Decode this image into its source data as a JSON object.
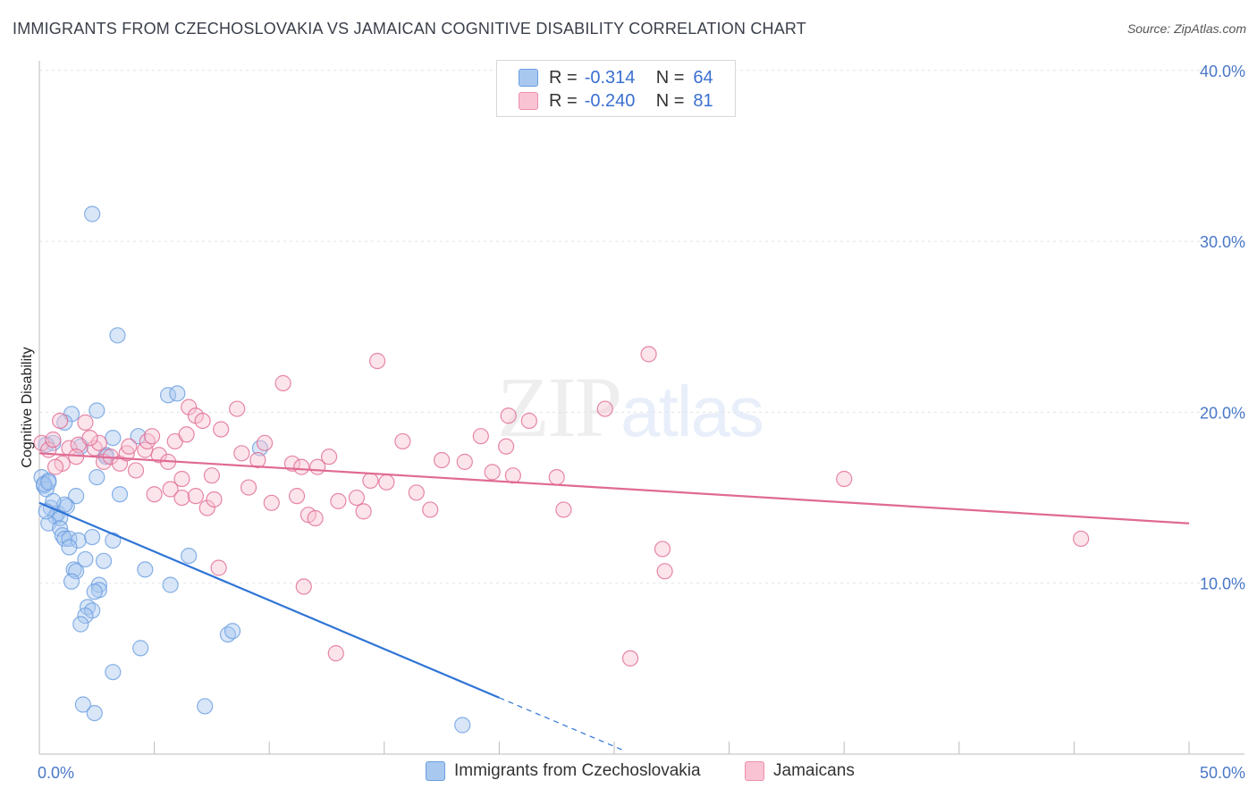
{
  "title": "IMMIGRANTS FROM CZECHOSLOVAKIA VS JAMAICAN COGNITIVE DISABILITY CORRELATION CHART",
  "source": "Source: ZipAtlas.com",
  "watermark": {
    "zip": "ZIP",
    "atlas": "atlas"
  },
  "stats_legend": [
    {
      "r_label": "R =",
      "r_value": "-0.314",
      "n_label": "N =",
      "n_value": "64",
      "color": "#a9c8f0",
      "border": "#6a9ee0"
    },
    {
      "r_label": "R =",
      "r_value": "-0.240",
      "n_label": "N =",
      "n_value": "81",
      "color": "#f9c3d3",
      "border": "#ec8fab"
    }
  ],
  "bottom_legend": [
    {
      "label": "Immigrants from Czechoslovakia",
      "color": "#a9c8f0",
      "border": "#6a9ee0"
    },
    {
      "label": "Jamaicans",
      "color": "#f9c3d3",
      "border": "#ec8fab"
    }
  ],
  "chart_data": {
    "type": "scatter",
    "title": "IMMIGRANTS FROM CZECHOSLOVAKIA VS JAMAICAN COGNITIVE DISABILITY CORRELATION CHART",
    "xlabel": "",
    "ylabel": "Cognitive Disability",
    "xlim": [
      0,
      50
    ],
    "ylim": [
      0,
      40
    ],
    "x_tick_labels": [
      "0.0%",
      "50.0%"
    ],
    "y_ticks": [
      10,
      20,
      30,
      40
    ],
    "y_tick_labels": [
      "10.0%",
      "20.0%",
      "30.0%",
      "40.0%"
    ],
    "grid": true,
    "series": [
      {
        "name": "Immigrants from Czechoslovakia",
        "color": "#6a9ee0",
        "fill": "#a9c8f0",
        "r": -0.314,
        "n": 64,
        "trend": {
          "x0": 0,
          "y0": 14.7,
          "x1": 20,
          "y1": 3.3,
          "dash_to_x": 25.5
        },
        "points": [
          [
            2.3,
            31.6
          ],
          [
            3.4,
            24.5
          ],
          [
            5.6,
            21.0
          ],
          [
            6.0,
            21.1
          ],
          [
            2.5,
            20.1
          ],
          [
            1.4,
            19.9
          ],
          [
            1.1,
            19.4
          ],
          [
            0.6,
            18.2
          ],
          [
            0.3,
            18.1
          ],
          [
            3.2,
            18.5
          ],
          [
            4.3,
            18.6
          ],
          [
            9.6,
            17.9
          ],
          [
            1.8,
            18.0
          ],
          [
            2.9,
            17.5
          ],
          [
            0.1,
            16.2
          ],
          [
            0.4,
            16.0
          ],
          [
            0.2,
            15.7
          ],
          [
            0.3,
            15.5
          ],
          [
            1.6,
            15.1
          ],
          [
            3.5,
            15.2
          ],
          [
            2.5,
            16.2
          ],
          [
            0.5,
            14.4
          ],
          [
            0.8,
            14.1
          ],
          [
            1.2,
            14.5
          ],
          [
            1.1,
            14.6
          ],
          [
            0.7,
            13.9
          ],
          [
            0.9,
            13.8
          ],
          [
            0.4,
            13.5
          ],
          [
            0.9,
            13.2
          ],
          [
            1.0,
            12.8
          ],
          [
            1.1,
            12.6
          ],
          [
            1.3,
            12.6
          ],
          [
            1.7,
            12.5
          ],
          [
            2.3,
            12.7
          ],
          [
            3.2,
            12.5
          ],
          [
            1.3,
            12.1
          ],
          [
            2.0,
            11.4
          ],
          [
            2.8,
            11.3
          ],
          [
            6.5,
            11.6
          ],
          [
            1.5,
            10.8
          ],
          [
            1.6,
            10.7
          ],
          [
            4.6,
            10.8
          ],
          [
            1.4,
            10.1
          ],
          [
            5.7,
            9.9
          ],
          [
            2.6,
            9.9
          ],
          [
            2.6,
            9.6
          ],
          [
            2.4,
            9.5
          ],
          [
            2.1,
            8.6
          ],
          [
            2.3,
            8.4
          ],
          [
            2.0,
            8.1
          ],
          [
            1.8,
            7.6
          ],
          [
            8.2,
            7.0
          ],
          [
            8.4,
            7.2
          ],
          [
            4.4,
            6.2
          ],
          [
            3.2,
            4.8
          ],
          [
            1.9,
            2.9
          ],
          [
            2.4,
            2.4
          ],
          [
            7.2,
            2.8
          ],
          [
            18.4,
            1.7
          ],
          [
            0.2,
            15.8
          ],
          [
            0.6,
            14.8
          ],
          [
            0.3,
            14.2
          ],
          [
            2.9,
            17.4
          ],
          [
            0.4,
            15.9
          ]
        ]
      },
      {
        "name": "Jamaicans",
        "color": "#e06a92",
        "fill": "#f9c3d3",
        "r": -0.24,
        "n": 81,
        "trend": {
          "x0": 0,
          "y0": 17.6,
          "x1": 50,
          "y1": 13.5
        },
        "points": [
          [
            0.1,
            18.2
          ],
          [
            0.4,
            17.8
          ],
          [
            0.6,
            18.4
          ],
          [
            0.9,
            19.5
          ],
          [
            1.3,
            17.9
          ],
          [
            1.7,
            18.1
          ],
          [
            1.6,
            17.4
          ],
          [
            2.0,
            19.4
          ],
          [
            2.4,
            17.9
          ],
          [
            2.6,
            18.2
          ],
          [
            2.8,
            17.1
          ],
          [
            3.1,
            17.4
          ],
          [
            3.5,
            17.0
          ],
          [
            3.8,
            17.6
          ],
          [
            4.2,
            16.6
          ],
          [
            4.6,
            17.8
          ],
          [
            4.7,
            18.3
          ],
          [
            4.9,
            18.6
          ],
          [
            5.2,
            17.5
          ],
          [
            5.6,
            17.1
          ],
          [
            5.9,
            18.3
          ],
          [
            6.2,
            16.1
          ],
          [
            6.4,
            18.7
          ],
          [
            6.5,
            20.3
          ],
          [
            6.8,
            19.8
          ],
          [
            7.1,
            19.5
          ],
          [
            7.5,
            16.3
          ],
          [
            7.9,
            19.0
          ],
          [
            8.6,
            20.2
          ],
          [
            8.8,
            17.6
          ],
          [
            9.1,
            15.6
          ],
          [
            9.5,
            17.2
          ],
          [
            9.8,
            18.2
          ],
          [
            10.6,
            21.7
          ],
          [
            11.0,
            17.0
          ],
          [
            11.4,
            16.8
          ],
          [
            11.7,
            14.0
          ],
          [
            12.1,
            16.8
          ],
          [
            12.6,
            17.4
          ],
          [
            13.0,
            14.8
          ],
          [
            13.8,
            15.0
          ],
          [
            14.1,
            14.2
          ],
          [
            14.4,
            16.0
          ],
          [
            14.7,
            23.0
          ],
          [
            15.8,
            18.3
          ],
          [
            16.4,
            15.3
          ],
          [
            17.0,
            14.3
          ],
          [
            17.5,
            17.2
          ],
          [
            18.5,
            17.1
          ],
          [
            19.2,
            18.6
          ],
          [
            19.7,
            16.5
          ],
          [
            20.3,
            18.0
          ],
          [
            20.6,
            16.3
          ],
          [
            21.3,
            19.5
          ],
          [
            22.5,
            16.2
          ],
          [
            22.8,
            14.3
          ],
          [
            24.6,
            20.2
          ],
          [
            26.5,
            23.4
          ],
          [
            27.1,
            12.0
          ],
          [
            27.2,
            10.7
          ],
          [
            25.7,
            5.6
          ],
          [
            35.0,
            16.1
          ],
          [
            45.3,
            12.6
          ],
          [
            5.0,
            15.2
          ],
          [
            5.7,
            15.5
          ],
          [
            6.2,
            15.0
          ],
          [
            6.8,
            15.1
          ],
          [
            7.3,
            14.4
          ],
          [
            7.6,
            14.9
          ],
          [
            10.1,
            14.7
          ],
          [
            11.2,
            15.1
          ],
          [
            12.0,
            13.8
          ],
          [
            7.8,
            10.9
          ],
          [
            11.5,
            9.8
          ],
          [
            12.9,
            5.9
          ],
          [
            20.4,
            19.8
          ],
          [
            3.9,
            18.0
          ],
          [
            2.2,
            18.5
          ],
          [
            1.0,
            17.0
          ],
          [
            0.7,
            16.8
          ],
          [
            15.1,
            15.9
          ]
        ]
      }
    ]
  }
}
